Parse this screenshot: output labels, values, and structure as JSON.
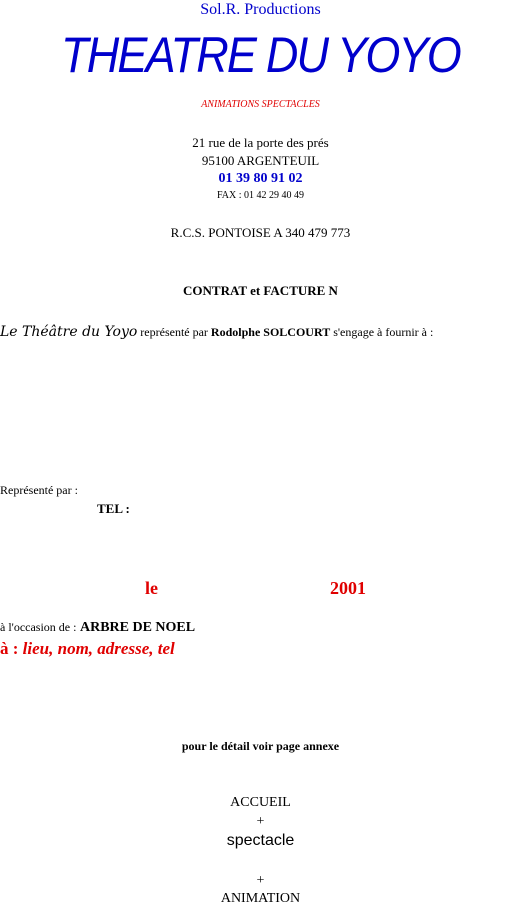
{
  "header": {
    "company": "Sol.R. Productions",
    "title": "THEATRE DU YOYO",
    "subtitle": "ANIMATIONS SPECTACLES",
    "address_line1": "21 rue de la porte des prés",
    "address_line2": "95100 ARGENTEUIL",
    "phone": "01 39 80 91 02",
    "fax": "FAX : 01 42 29 40 49",
    "rcs": "R.C.S. PONTOISE A 340 479 773"
  },
  "contract": {
    "heading": "CONTRAT et FACTURE N",
    "intro": {
      "name": "Le Théâtre du Yoyo",
      "text1": "représenté par",
      "representative": "Rodolphe SOLCOURT",
      "text2": "s'engage à fournir à :"
    },
    "represented_by": "Représenté par :",
    "tel": "TEL :",
    "date": {
      "prefix": "le",
      "year": "2001"
    },
    "occasion": {
      "label": "à l'occasion de :",
      "value": "ARBRE DE NOEL"
    },
    "location": {
      "label": "à :",
      "value": "lieu, nom, adresse, tel"
    },
    "detail_note": "pour le détail voir page annexe",
    "program": [
      "ACCUEIL",
      "+",
      "spectacle",
      "+",
      "ANIMATION"
    ]
  }
}
